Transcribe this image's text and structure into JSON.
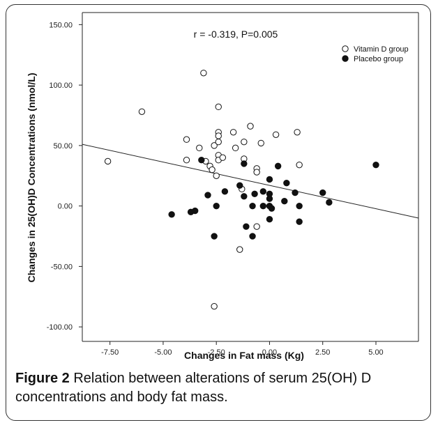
{
  "figure": {
    "caption_label": "Figure 2",
    "caption_text": " Relation between alterations of serum 25(OH) D concentrations and body fat mass."
  },
  "chart_data": {
    "type": "scatter",
    "title": "",
    "annotation": "r = -0.319, P=0.005",
    "xlabel": "Changes in Fat mass (Kg)",
    "ylabel": "Changes in 25(OH)D Concentrations (nmol/L)",
    "xlim": [
      -8.8,
      7.0
    ],
    "ylim": [
      -112,
      160
    ],
    "x_ticks": [
      -7.5,
      -5.0,
      -2.5,
      0.0,
      2.5,
      5.0
    ],
    "x_tick_labels": [
      "-7.50",
      "-5.00",
      "-2.50",
      "0.00",
      "2.50",
      "5.00"
    ],
    "y_ticks": [
      150,
      100,
      50,
      0,
      -50,
      -100
    ],
    "y_tick_labels": [
      "150.00",
      "100.00",
      "50.00",
      "0.00",
      "-50.00",
      "-100.00"
    ],
    "grid": false,
    "legend_position": "top-right",
    "fit_line": {
      "x": [
        -8.8,
        7.0
      ],
      "y": [
        51,
        -10
      ]
    },
    "series": [
      {
        "name": "Vitamin D group",
        "marker": "open-circle",
        "points": [
          [
            -7.6,
            37
          ],
          [
            -6.0,
            78
          ],
          [
            -3.9,
            55
          ],
          [
            -3.9,
            38
          ],
          [
            -3.3,
            48
          ],
          [
            -3.1,
            110
          ],
          [
            -3.0,
            37
          ],
          [
            -2.8,
            33
          ],
          [
            -2.7,
            30
          ],
          [
            -2.6,
            50
          ],
          [
            -2.5,
            25
          ],
          [
            -2.4,
            82
          ],
          [
            -2.4,
            61
          ],
          [
            -2.4,
            58
          ],
          [
            -2.4,
            53
          ],
          [
            -2.4,
            42
          ],
          [
            -2.4,
            38
          ],
          [
            -2.2,
            40
          ],
          [
            -2.6,
            -83
          ],
          [
            -1.7,
            61
          ],
          [
            -1.6,
            48
          ],
          [
            -1.2,
            53
          ],
          [
            -1.2,
            39
          ],
          [
            -0.9,
            66
          ],
          [
            -0.6,
            31
          ],
          [
            -0.6,
            28
          ],
          [
            -0.4,
            52
          ],
          [
            -0.6,
            -17
          ],
          [
            -1.4,
            -36
          ],
          [
            0.3,
            59
          ],
          [
            1.3,
            61
          ],
          [
            1.4,
            34
          ],
          [
            -1.3,
            14
          ]
        ]
      },
      {
        "name": "Placebo group",
        "marker": "filled-circle",
        "points": [
          [
            -4.6,
            -7
          ],
          [
            -3.7,
            -5
          ],
          [
            -3.5,
            -4
          ],
          [
            -3.2,
            38
          ],
          [
            -2.9,
            9
          ],
          [
            -2.5,
            0
          ],
          [
            -2.6,
            -25
          ],
          [
            -2.1,
            12
          ],
          [
            -1.4,
            17
          ],
          [
            -1.2,
            35
          ],
          [
            -1.2,
            8
          ],
          [
            -1.1,
            -17
          ],
          [
            -0.8,
            0
          ],
          [
            -0.7,
            10
          ],
          [
            -0.8,
            -25
          ],
          [
            -0.3,
            12
          ],
          [
            -0.3,
            0
          ],
          [
            0.0,
            22
          ],
          [
            0.0,
            10
          ],
          [
            0.0,
            6
          ],
          [
            0.0,
            0
          ],
          [
            0.0,
            -11
          ],
          [
            0.1,
            -2
          ],
          [
            0.4,
            33
          ],
          [
            0.7,
            4
          ],
          [
            0.8,
            19
          ],
          [
            1.2,
            11
          ],
          [
            1.4,
            0
          ],
          [
            1.4,
            -13
          ],
          [
            2.5,
            11
          ],
          [
            2.8,
            3
          ],
          [
            5.0,
            34
          ]
        ]
      }
    ]
  }
}
